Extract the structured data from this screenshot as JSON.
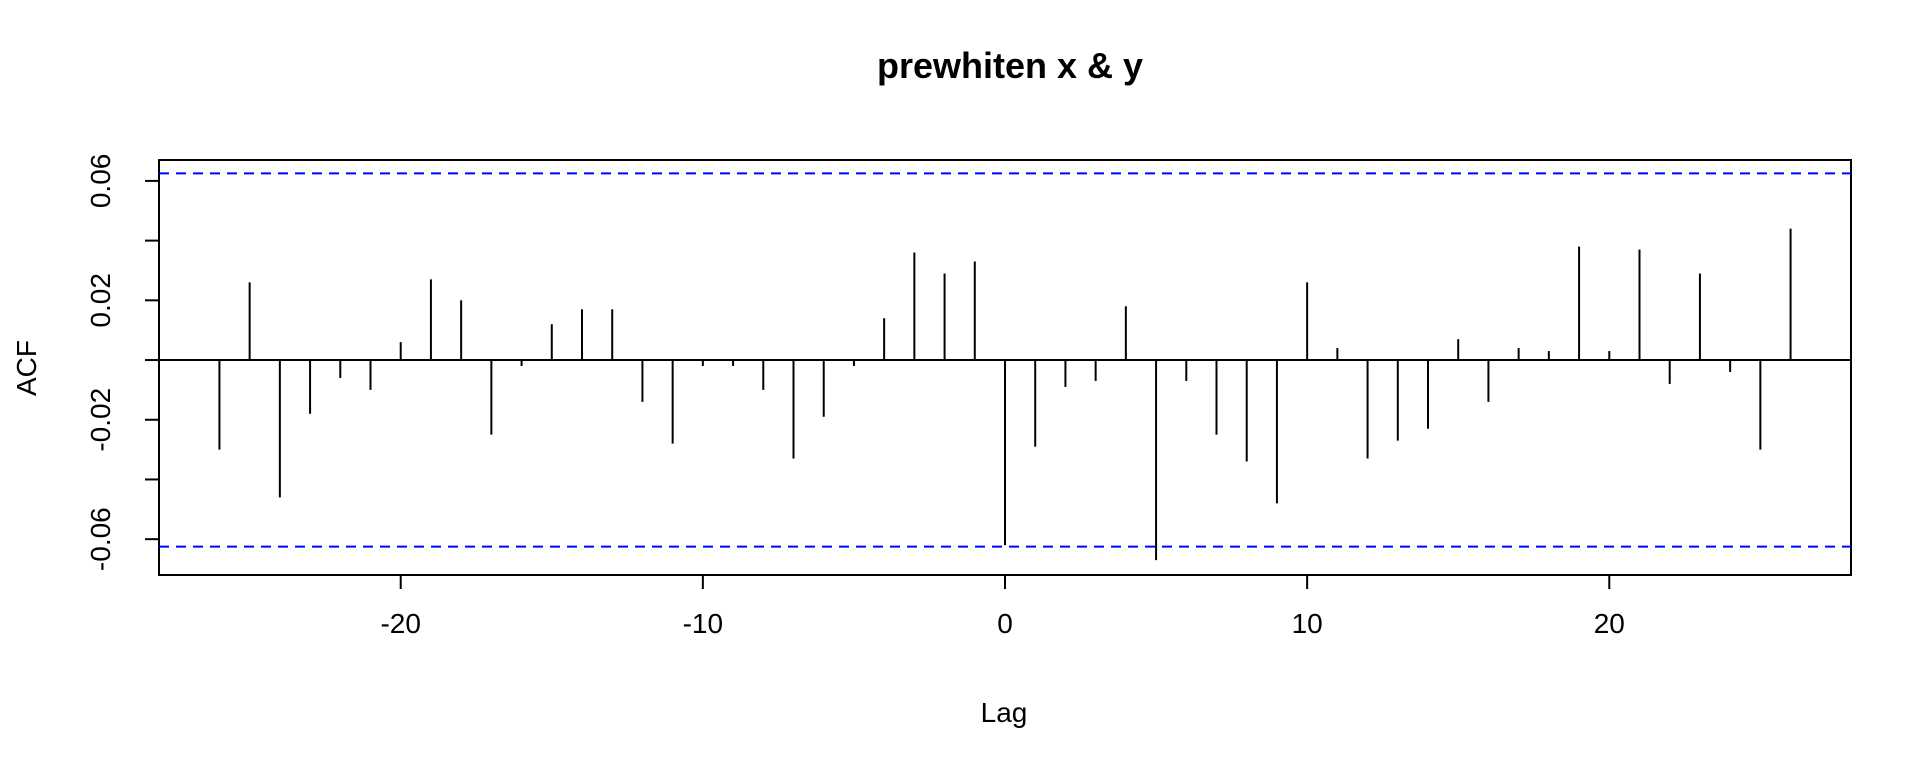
{
  "chart_data": {
    "type": "bar",
    "title": "prewhiten x & y",
    "xlabel": "Lag",
    "ylabel": "ACF",
    "xlim": [
      -28,
      28
    ],
    "ylim": [
      -0.072,
      0.067
    ],
    "confidence_bound": 0.0625,
    "colors": {
      "bars": "#000000",
      "bounds": "#0000FF",
      "frame": "#000000"
    },
    "x_ticks": [
      -20,
      -10,
      0,
      10,
      20
    ],
    "x_tick_labels": [
      "-20",
      "-10",
      "0",
      "10",
      "20"
    ],
    "y_ticks": [
      -0.06,
      -0.04,
      -0.02,
      0,
      0.02,
      0.04,
      0.06
    ],
    "y_tick_labels": [
      "-0.06",
      "",
      "-0.02",
      "",
      "0.02",
      "",
      "0.06"
    ],
    "lags": [
      -26,
      -25,
      -24,
      -23,
      -22,
      -21,
      -20,
      -19,
      -18,
      -17,
      -16,
      -15,
      -14,
      -13,
      -12,
      -11,
      -10,
      -9,
      -8,
      -7,
      -6,
      -5,
      -4,
      -3,
      -2,
      -1,
      0,
      1,
      2,
      3,
      4,
      5,
      6,
      7,
      8,
      9,
      10,
      11,
      12,
      13,
      14,
      15,
      16,
      17,
      18,
      19,
      20,
      21,
      22,
      23,
      24,
      25,
      26
    ],
    "values": [
      -0.03,
      0.026,
      -0.046,
      -0.018,
      -0.006,
      -0.01,
      0.006,
      0.027,
      0.02,
      -0.025,
      -0.002,
      0.012,
      0.017,
      0.017,
      -0.014,
      -0.028,
      -0.002,
      -0.002,
      -0.01,
      -0.033,
      -0.019,
      -0.002,
      0.014,
      0.036,
      0.029,
      0.033,
      -0.062,
      -0.029,
      -0.009,
      -0.007,
      0.018,
      -0.067,
      -0.007,
      -0.025,
      -0.034,
      -0.048,
      0.026,
      0.004,
      -0.033,
      -0.027,
      -0.023,
      0.007,
      -0.014,
      0.004,
      0.003,
      0.038,
      0.003,
      0.037,
      -0.008,
      0.029,
      -0.004,
      -0.03,
      0.044
    ]
  }
}
